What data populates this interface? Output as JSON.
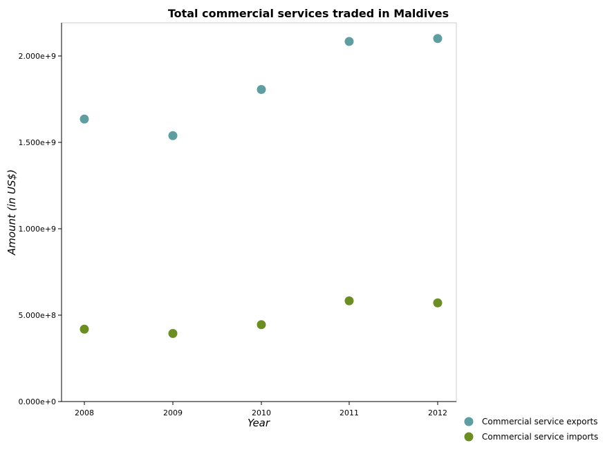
{
  "chart_data": {
    "type": "scatter",
    "title": "Total commercial services traded in Maldives",
    "xlabel": "Year",
    "ylabel": "Amount (in US$)",
    "x": [
      "2008",
      "2009",
      "2010",
      "2011",
      "2012"
    ],
    "ylim": [
      0,
      2200000000
    ],
    "yticks": [
      0,
      500000000,
      1000000000,
      1500000000,
      2000000000
    ],
    "ytick_labels": [
      "0.000e+0",
      "5.000e+8",
      "1.000e+9",
      "1.500e+9",
      "2.000e+9"
    ],
    "grid": false,
    "legend_position": "bottom-right",
    "series": [
      {
        "name": "Commercial service exports",
        "color": "#5f9ea0",
        "values": [
          1635000000,
          1539000000,
          1806000000,
          2084000000,
          2101000000
        ]
      },
      {
        "name": "Commercial service imports",
        "color": "#6b8e23",
        "values": [
          419000000,
          394000000,
          445000000,
          583000000,
          571000000
        ]
      }
    ]
  }
}
